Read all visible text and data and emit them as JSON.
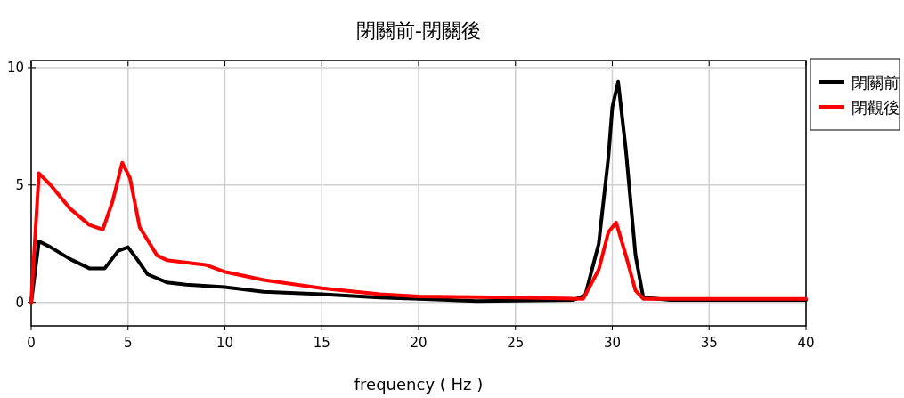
{
  "chart_data": {
    "type": "line",
    "title": "閉關前-閉關後",
    "xlabel": "frequency ( Hz )",
    "xlim": [
      0,
      40
    ],
    "xticks": [
      0,
      5,
      10,
      15,
      20,
      25,
      30,
      35,
      40
    ],
    "ylim": [
      -1,
      10.3
    ],
    "yticks": [
      0,
      5,
      10
    ],
    "grid": true,
    "legend": "top right",
    "line_style": "solid",
    "marker": "none",
    "series": [
      {
        "name": "閉關前",
        "color": "#000000",
        "x": [
          0,
          0.4,
          1,
          2,
          3,
          3.8,
          4.5,
          5,
          5.5,
          6,
          7,
          8,
          10,
          12,
          15,
          18,
          20,
          23,
          28,
          28.6,
          29.3,
          29.8,
          30,
          30.3,
          30.7,
          31.2,
          31.6,
          33,
          40
        ],
        "values": [
          0,
          2.6,
          2.35,
          1.85,
          1.45,
          1.45,
          2.2,
          2.35,
          1.8,
          1.2,
          0.85,
          0.75,
          0.65,
          0.45,
          0.35,
          0.2,
          0.15,
          0.05,
          0.1,
          0.3,
          2.5,
          6.2,
          8.3,
          9.4,
          6.5,
          2,
          0.2,
          0.1,
          0.1
        ]
      },
      {
        "name": "閉觀後",
        "color": "#ff0000",
        "x": [
          0,
          0.4,
          1,
          2,
          3,
          3.7,
          4.2,
          4.7,
          5.1,
          5.6,
          6.5,
          7,
          9,
          10,
          12,
          15,
          18,
          20,
          25,
          28.5,
          29.3,
          29.8,
          30.2,
          30.7,
          31.2,
          31.6,
          40
        ],
        "values": [
          0,
          5.5,
          5.0,
          4.0,
          3.3,
          3.1,
          4.3,
          5.95,
          5.3,
          3.2,
          2.0,
          1.8,
          1.6,
          1.3,
          0.95,
          0.6,
          0.35,
          0.25,
          0.2,
          0.15,
          1.4,
          3.0,
          3.4,
          2.0,
          0.5,
          0.15,
          0.15
        ]
      }
    ]
  }
}
